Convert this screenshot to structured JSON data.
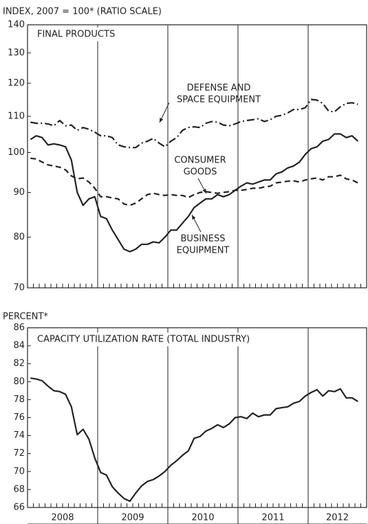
{
  "chart_data": [
    {
      "type": "line",
      "axis_label": "INDEX, 2007 = 100* (RATIO SCALE)",
      "title": "FINAL PRODUCTS",
      "log_scale": true,
      "x": [
        "2008-01",
        "2008-02",
        "2008-03",
        "2008-04",
        "2008-05",
        "2008-06",
        "2008-07",
        "2008-08",
        "2008-09",
        "2008-10",
        "2008-11",
        "2008-12",
        "2009-01",
        "2009-02",
        "2009-03",
        "2009-04",
        "2009-05",
        "2009-06",
        "2009-07",
        "2009-08",
        "2009-09",
        "2009-10",
        "2009-11",
        "2009-12",
        "2010-01",
        "2010-02",
        "2010-03",
        "2010-04",
        "2010-05",
        "2010-06",
        "2010-07",
        "2010-08",
        "2010-09",
        "2010-10",
        "2010-11",
        "2010-12",
        "2011-01",
        "2011-02",
        "2011-03",
        "2011-04",
        "2011-05",
        "2011-06",
        "2011-07",
        "2011-08",
        "2011-09",
        "2011-10",
        "2011-11",
        "2011-12",
        "2012-01",
        "2012-02",
        "2012-03",
        "2012-04",
        "2012-05",
        "2012-06",
        "2012-07",
        "2012-08",
        "2012-09"
      ],
      "xlim": [
        "2008-01",
        "2012-11"
      ],
      "xticks": [
        {
          "value": "2008-01",
          "label": "2008"
        },
        {
          "value": "2009-01",
          "label": "2009"
        },
        {
          "value": "2010-01",
          "label": "2010"
        },
        {
          "value": "2011-01",
          "label": "2011"
        },
        {
          "value": "2012-01",
          "label": "2012"
        }
      ],
      "ylim": [
        70,
        140
      ],
      "yticks": [
        70,
        80,
        90,
        100,
        110,
        120,
        130,
        140
      ],
      "series": [
        {
          "name": [
            "DEFENSE AND",
            "SPACE EQUIPMENT"
          ],
          "color": "#222222",
          "dash": "dashdot",
          "values": [
            108.3,
            108,
            108,
            107.8,
            107.3,
            108.8,
            107.3,
            107.5,
            106,
            106.8,
            106.3,
            105.5,
            104.5,
            104.5,
            104,
            102,
            101.5,
            101.3,
            101.3,
            102.5,
            103,
            103.8,
            102.5,
            101.5,
            103,
            104,
            106,
            106.8,
            107,
            106.8,
            108,
            108.5,
            108.3,
            107.5,
            107.3,
            107.8,
            108.5,
            108.8,
            109,
            109.3,
            108.5,
            109,
            110,
            110.3,
            111,
            112,
            112,
            112.5,
            115,
            114.8,
            113.8,
            111.5,
            111.3,
            112.8,
            113.8,
            114,
            113.5
          ]
        },
        {
          "name": [
            "CONSUMER",
            "GOODS"
          ],
          "color": "#222222",
          "dash": "dashed",
          "values": [
            98.5,
            98.3,
            97.5,
            96.8,
            96.5,
            96.2,
            95.5,
            94,
            93.3,
            93.5,
            92.5,
            91,
            89,
            89,
            88.7,
            88.5,
            87.3,
            87,
            87.5,
            88.5,
            89.5,
            89.8,
            89.5,
            89.3,
            89.5,
            89.3,
            89.3,
            88.8,
            89.5,
            90,
            90.2,
            90,
            89.8,
            90,
            90.2,
            90.5,
            90.5,
            90.7,
            91,
            91,
            91.3,
            91.5,
            92.3,
            92.5,
            92.7,
            92.8,
            92.5,
            93,
            93.3,
            93.5,
            93,
            93.8,
            93.8,
            94.2,
            93.3,
            93,
            92.3
          ]
        },
        {
          "name": [
            "BUSINESS",
            "EQUIPMENT"
          ],
          "color": "#222222",
          "dash": "solid",
          "values": [
            103.5,
            104.5,
            104,
            102,
            102.3,
            102,
            101.5,
            98,
            90,
            87,
            88.5,
            89,
            84.5,
            84,
            81.5,
            79.5,
            77.5,
            77,
            77.5,
            78.5,
            78.5,
            79,
            78.8,
            80,
            81.5,
            81.5,
            83,
            84.5,
            86.5,
            87.5,
            88.5,
            88.5,
            89.5,
            89,
            89.5,
            90.5,
            91.5,
            92.3,
            92,
            92.5,
            93,
            93,
            94.5,
            95,
            96,
            96.5,
            97.5,
            99.5,
            101,
            101.5,
            103,
            103.5,
            105,
            105,
            104,
            104.5,
            103
          ]
        }
      ]
    },
    {
      "type": "line",
      "axis_label": "PERCENT*",
      "title": "CAPACITY UTILIZATION RATE (TOTAL INDUSTRY)",
      "log_scale": false,
      "x": [
        "2008-01",
        "2008-02",
        "2008-03",
        "2008-04",
        "2008-05",
        "2008-06",
        "2008-07",
        "2008-08",
        "2008-09",
        "2008-10",
        "2008-11",
        "2008-12",
        "2009-01",
        "2009-02",
        "2009-03",
        "2009-04",
        "2009-05",
        "2009-06",
        "2009-07",
        "2009-08",
        "2009-09",
        "2009-10",
        "2009-11",
        "2009-12",
        "2010-01",
        "2010-02",
        "2010-03",
        "2010-04",
        "2010-05",
        "2010-06",
        "2010-07",
        "2010-08",
        "2010-09",
        "2010-10",
        "2010-11",
        "2010-12",
        "2011-01",
        "2011-02",
        "2011-03",
        "2011-04",
        "2011-05",
        "2011-06",
        "2011-07",
        "2011-08",
        "2011-09",
        "2011-10",
        "2011-11",
        "2011-12",
        "2012-01",
        "2012-02",
        "2012-03",
        "2012-04",
        "2012-05",
        "2012-06",
        "2012-07",
        "2012-08",
        "2012-09"
      ],
      "xlim": [
        "2008-01",
        "2012-11"
      ],
      "xticks": [
        {
          "value": "2008-01",
          "label": "2008"
        },
        {
          "value": "2009-01",
          "label": "2009"
        },
        {
          "value": "2010-01",
          "label": "2010"
        },
        {
          "value": "2011-01",
          "label": "2011"
        },
        {
          "value": "2012-01",
          "label": "2012"
        }
      ],
      "ylim": [
        66,
        86
      ],
      "yticks": [
        66,
        68,
        70,
        72,
        74,
        76,
        78,
        80,
        82,
        84,
        86
      ],
      "series": [
        {
          "color": "#222222",
          "dash": "solid",
          "values": [
            80.4,
            80.3,
            80.1,
            79.5,
            79,
            78.9,
            78.6,
            77.2,
            74.1,
            74.7,
            73.6,
            71.5,
            69.9,
            69.6,
            68.3,
            67.6,
            67,
            66.7,
            67.6,
            68.4,
            68.9,
            69.1,
            69.5,
            70,
            70.7,
            71.2,
            71.8,
            72.3,
            73.7,
            73.9,
            74.5,
            74.8,
            75.2,
            74.9,
            75.3,
            76,
            76.1,
            75.9,
            76.5,
            76.1,
            76.3,
            76.3,
            77,
            77.1,
            77.2,
            77.6,
            77.8,
            78.4,
            78.8,
            79.1,
            78.4,
            79,
            78.9,
            79.2,
            78.2,
            78.2,
            77.8
          ]
        }
      ]
    }
  ]
}
